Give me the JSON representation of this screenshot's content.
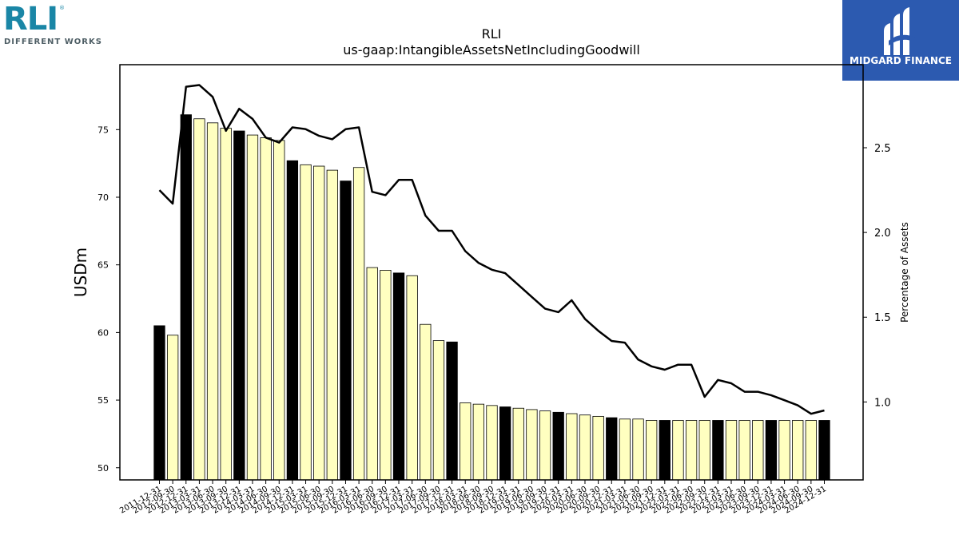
{
  "logo_left": {
    "name": "RLI",
    "registered": "®",
    "tagline": "DIFFERENT WORKS"
  },
  "logo_right": {
    "brand": "MIDGARD FINANCE"
  },
  "colors": {
    "bar_black": "#000000",
    "bar_yellow": "#ffffc0",
    "line": "#000000",
    "brand_blue": "#2c5ab0",
    "rli_teal": "#1a86a6"
  },
  "chart_data": {
    "type": "bar",
    "title": "RLI",
    "subtitle": "us-gaap:IntangibleAssetsNetIncludingGoodwill",
    "ylabel": "USDm",
    "y2label": "Percentage of Assets",
    "ylim": [
      49.1,
      79.8
    ],
    "y2lim": [
      0.54,
      2.99
    ],
    "yticks": [
      50,
      55,
      60,
      65,
      70,
      75
    ],
    "y2ticks": [
      1.0,
      1.5,
      2.0,
      2.5
    ],
    "y2tick_labels": [
      "1.0",
      "1.5",
      "2.0",
      "2.5"
    ],
    "categories": [
      "2011-12-31",
      "2012-09-30",
      "2012-12-31",
      "2013-03-31",
      "2013-06-30",
      "2013-09-30",
      "2013-12-31",
      "2014-03-31",
      "2014-06-30",
      "2014-09-30",
      "2014-12-31",
      "2015-03-31",
      "2015-06-30",
      "2015-09-30",
      "2015-12-31",
      "2016-03-31",
      "2016-06-30",
      "2016-09-30",
      "2016-12-31",
      "2017-03-31",
      "2017-06-30",
      "2017-09-30",
      "2017-12-31",
      "2018-03-31",
      "2018-06-30",
      "2018-09-30",
      "2018-12-31",
      "2019-03-31",
      "2019-06-30",
      "2019-09-30",
      "2019-12-31",
      "2020-03-31",
      "2020-06-30",
      "2020-09-30",
      "2020-12-31",
      "2021-03-31",
      "2021-06-30",
      "2021-09-30",
      "2021-12-31",
      "2022-03-31",
      "2022-06-30",
      "2022-09-30",
      "2022-12-31",
      "2023-03-31",
      "2023-06-30",
      "2023-09-30",
      "2023-12-31",
      "2024-03-31",
      "2024-06-30",
      "2024-09-30",
      "2024-12-31"
    ],
    "series": [
      {
        "type": "bar",
        "axis": "left",
        "values": [
          60.5,
          59.8,
          76.1,
          75.8,
          75.5,
          75.1,
          74.9,
          74.6,
          74.4,
          74.2,
          72.7,
          72.4,
          72.3,
          72.0,
          71.2,
          72.2,
          64.8,
          64.6,
          64.4,
          64.2,
          60.6,
          59.4,
          59.3,
          54.8,
          54.7,
          54.6,
          54.5,
          54.4,
          54.3,
          54.2,
          54.1,
          54.0,
          53.9,
          53.8,
          53.7,
          53.6,
          53.6,
          53.5,
          53.5,
          53.5,
          53.5,
          53.5,
          53.5,
          53.5,
          53.5,
          53.5,
          53.5,
          53.5,
          53.5,
          53.5,
          53.5
        ],
        "highlight": [
          true,
          false,
          true,
          false,
          false,
          false,
          true,
          false,
          false,
          false,
          true,
          false,
          false,
          false,
          true,
          false,
          false,
          false,
          true,
          false,
          false,
          false,
          true,
          false,
          false,
          false,
          true,
          false,
          false,
          false,
          true,
          false,
          false,
          false,
          true,
          false,
          false,
          false,
          true,
          false,
          false,
          false,
          true,
          false,
          false,
          false,
          true,
          false,
          false,
          false,
          true
        ]
      },
      {
        "type": "line",
        "axis": "right",
        "values": [
          2.25,
          2.17,
          2.86,
          2.87,
          2.8,
          2.6,
          2.73,
          2.67,
          2.56,
          2.53,
          2.62,
          2.61,
          2.57,
          2.55,
          2.61,
          2.62,
          2.24,
          2.22,
          2.31,
          2.31,
          2.1,
          2.01,
          2.01,
          1.89,
          1.82,
          1.78,
          1.76,
          1.69,
          1.62,
          1.55,
          1.53,
          1.6,
          1.49,
          1.42,
          1.36,
          1.35,
          1.25,
          1.21,
          1.19,
          1.22,
          1.22,
          1.03,
          1.13,
          1.11,
          1.06,
          1.06,
          1.04,
          1.01,
          0.98,
          0.93,
          0.95
        ]
      }
    ],
    "grid": false,
    "legend": "none"
  }
}
